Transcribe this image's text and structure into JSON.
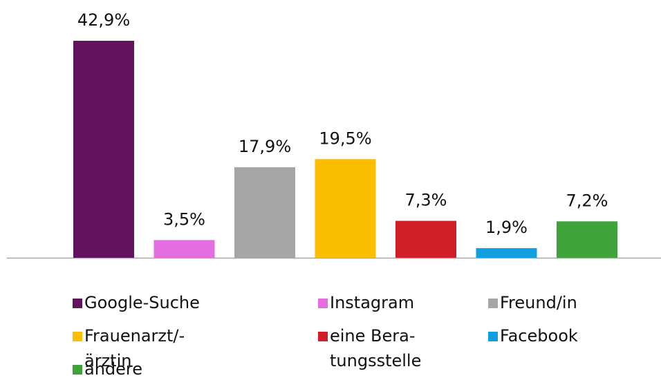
{
  "chart_data": {
    "type": "bar",
    "categories": [
      "Google-Suche",
      "Instagram",
      "Freund/in",
      "Frauenarzt/-ärztin",
      "eine Bera-tungsstelle",
      "Facebook",
      "andere"
    ],
    "values": [
      42.9,
      3.5,
      17.9,
      19.5,
      7.3,
      1.9,
      7.2
    ],
    "value_labels": [
      "42,9%",
      "3,5%",
      "17,9%",
      "19,5%",
      "7,3%",
      "1,9%",
      "7,2%"
    ],
    "colors": [
      "#62135e",
      "#e46ee0",
      "#a6a6a6",
      "#fbbe00",
      "#d01f26",
      "#10a0e0",
      "#3fa33c"
    ]
  }
}
